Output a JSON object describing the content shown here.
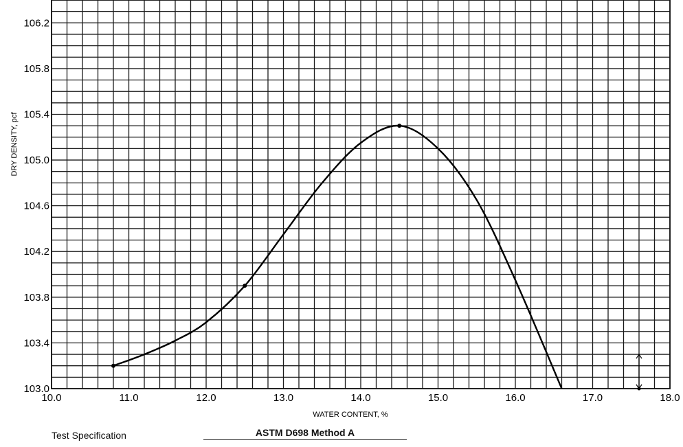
{
  "chart_data": {
    "type": "line",
    "xlabel": "WATER CONTENT, %",
    "ylabel": "DRY DENSITY, pcf",
    "xlim": [
      10.0,
      18.0
    ],
    "ylim": [
      103.0,
      106.4
    ],
    "x_ticks": [
      "10.0",
      "11.0",
      "12.0",
      "13.0",
      "14.0",
      "15.0",
      "16.0",
      "17.0",
      "18.0"
    ],
    "y_ticks": [
      "103.0",
      "103.4",
      "103.8",
      "104.2",
      "104.6",
      "105.0",
      "105.4",
      "105.8",
      "106.2"
    ],
    "grid": true,
    "series": [
      {
        "points": [
          {
            "x": 10.8,
            "y": 103.2
          },
          {
            "x": 12.5,
            "y": 103.9
          },
          {
            "x": 14.5,
            "y": 105.3
          }
        ],
        "curve": [
          [
            10.8,
            103.2
          ],
          [
            11.2,
            103.3
          ],
          [
            11.6,
            103.42
          ],
          [
            12.0,
            103.58
          ],
          [
            12.5,
            103.9
          ],
          [
            13.0,
            104.35
          ],
          [
            13.5,
            104.8
          ],
          [
            14.0,
            105.15
          ],
          [
            14.5,
            105.3
          ],
          [
            15.0,
            105.1
          ],
          [
            15.5,
            104.65
          ],
          [
            16.0,
            103.95
          ],
          [
            16.6,
            103.0
          ]
        ]
      }
    ],
    "marker_x": 17.6
  },
  "footer": {
    "spec_label": "Test Specification",
    "spec_value": "ASTM D698 Method A"
  }
}
